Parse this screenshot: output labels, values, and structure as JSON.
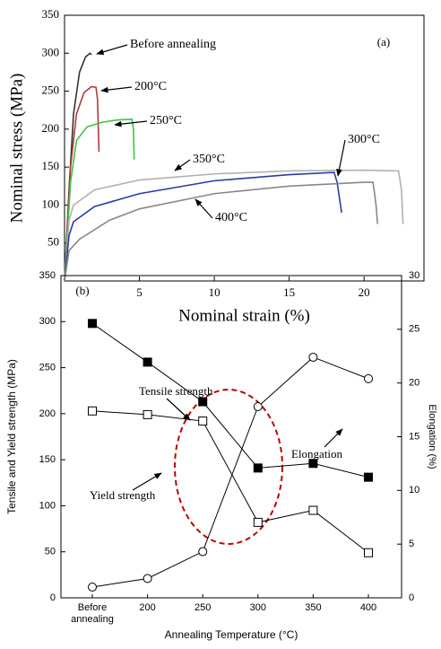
{
  "chart_data": [
    {
      "type": "line",
      "panel_label": "(a)",
      "x_label": "Nominal strain (%)",
      "y_label": "Nominal stress (MPa)",
      "xlim": [
        0,
        24
      ],
      "xticks": [
        5,
        10,
        15,
        20
      ],
      "ylim": [
        0,
        350
      ],
      "yticks": [
        50,
        100,
        150,
        200,
        250,
        300,
        350
      ],
      "series": [
        {
          "name": "Before annealing",
          "color": "#333333",
          "x": [
            0,
            0.3,
            0.6,
            1.0,
            1.4,
            1.7,
            1.8
          ],
          "values": [
            0,
            120,
            220,
            275,
            295,
            300,
            298
          ]
        },
        {
          "name": "200°C",
          "color": "#b03a3a",
          "x": [
            0,
            0.4,
            0.8,
            1.3,
            1.8,
            2.1,
            2.2,
            2.3
          ],
          "values": [
            0,
            150,
            220,
            248,
            256,
            255,
            240,
            170
          ]
        },
        {
          "name": "250°C",
          "color": "#3ec43e",
          "x": [
            0,
            0.4,
            0.8,
            1.5,
            2.5,
            3.5,
            4.5,
            4.6,
            4.65
          ],
          "values": [
            0,
            130,
            185,
            203,
            209,
            212,
            213,
            200,
            160
          ]
        },
        {
          "name": "350°C",
          "color": "#b0b0b0",
          "x": [
            0,
            0.3,
            0.6,
            2,
            5,
            10,
            15,
            20,
            22.3,
            22.5,
            22.6
          ],
          "values": [
            0,
            80,
            100,
            120,
            133,
            141,
            145,
            146,
            145,
            120,
            75
          ]
        },
        {
          "name": "300°C",
          "color": "#2a3aa8",
          "x": [
            0,
            0.3,
            0.6,
            2,
            5,
            10,
            15,
            18,
            18.2,
            18.5
          ],
          "values": [
            0,
            60,
            78,
            98,
            115,
            132,
            140,
            143,
            130,
            90
          ]
        },
        {
          "name": "400°C",
          "color": "#888888",
          "x": [
            0,
            0.3,
            1,
            3,
            5,
            10,
            15,
            20,
            20.6,
            20.8,
            20.9
          ],
          "values": [
            0,
            40,
            55,
            80,
            95,
            115,
            125,
            130,
            130,
            100,
            75
          ]
        }
      ]
    },
    {
      "type": "line",
      "panel_label": "(b)",
      "x_label": "Annealing Temperature (°C)",
      "y_label": "Tensile and Yield strength (MPa)",
      "y2_label": "Elongation (%)",
      "categories": [
        "Before annealing",
        "200",
        "250",
        "300",
        "350",
        "400"
      ],
      "ylim": [
        0,
        350
      ],
      "yticks": [
        0,
        50,
        100,
        150,
        200,
        250,
        300,
        350
      ],
      "y2lim": [
        0,
        30
      ],
      "y2ticks": [
        0,
        5,
        10,
        15,
        20,
        25,
        30
      ],
      "series": [
        {
          "name": "Tensile strength",
          "color": "#000000",
          "marker": "square",
          "filled": true,
          "values": [
            298,
            256,
            213,
            141,
            146,
            131
          ]
        },
        {
          "name": "Yield strength",
          "color": "#000000",
          "marker": "square",
          "filled": false,
          "values": [
            203,
            199,
            192,
            82,
            95,
            49
          ]
        },
        {
          "name": "Elongation",
          "color": "#000000",
          "marker": "circle",
          "filled": false,
          "axis": "y2",
          "values": [
            1.0,
            1.8,
            4.3,
            17.8,
            22.4,
            20.4
          ]
        }
      ]
    }
  ]
}
